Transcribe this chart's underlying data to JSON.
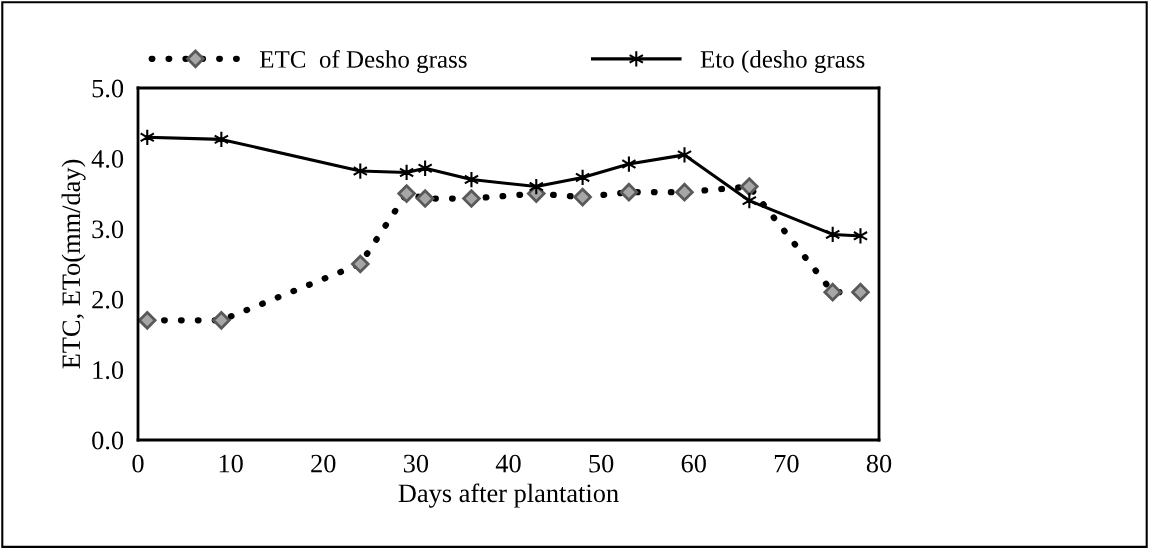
{
  "chart_data": {
    "type": "line",
    "xlabel": "Days after plantation",
    "ylabel": "ETC, ETo(mm/day)",
    "x": [
      1,
      9,
      24,
      29,
      31,
      36,
      43,
      48,
      53,
      59,
      66,
      75,
      78
    ],
    "series": [
      {
        "name": "ETC  of Desho grass",
        "color": "#000000",
        "line_style": "dotted",
        "marker": "diamond",
        "values": [
          1.7,
          1.7,
          2.5,
          3.5,
          3.43,
          3.43,
          3.5,
          3.45,
          3.52,
          3.52,
          3.6,
          2.1,
          2.1
        ]
      },
      {
        "name": "Eto (desho grass",
        "color": "#000000",
        "line_style": "solid",
        "marker": "cross",
        "values": [
          4.3,
          4.27,
          3.82,
          3.8,
          3.86,
          3.7,
          3.6,
          3.73,
          3.92,
          4.05,
          3.4,
          2.92,
          2.9
        ]
      }
    ],
    "xlim": [
      0,
      80
    ],
    "xticks": [
      0,
      10,
      20,
      30,
      40,
      50,
      60,
      70,
      80
    ],
    "ylim": [
      0,
      5
    ],
    "yticks": [
      {
        "value": 0,
        "label": "0.0"
      },
      {
        "value": 1,
        "label": "1.0"
      },
      {
        "value": 2,
        "label": "2.0"
      },
      {
        "value": 3,
        "label": "3.0"
      },
      {
        "value": 4,
        "label": "4.0"
      },
      {
        "value": 5,
        "label": "5.0"
      }
    ],
    "grid": false,
    "legend": "top"
  }
}
